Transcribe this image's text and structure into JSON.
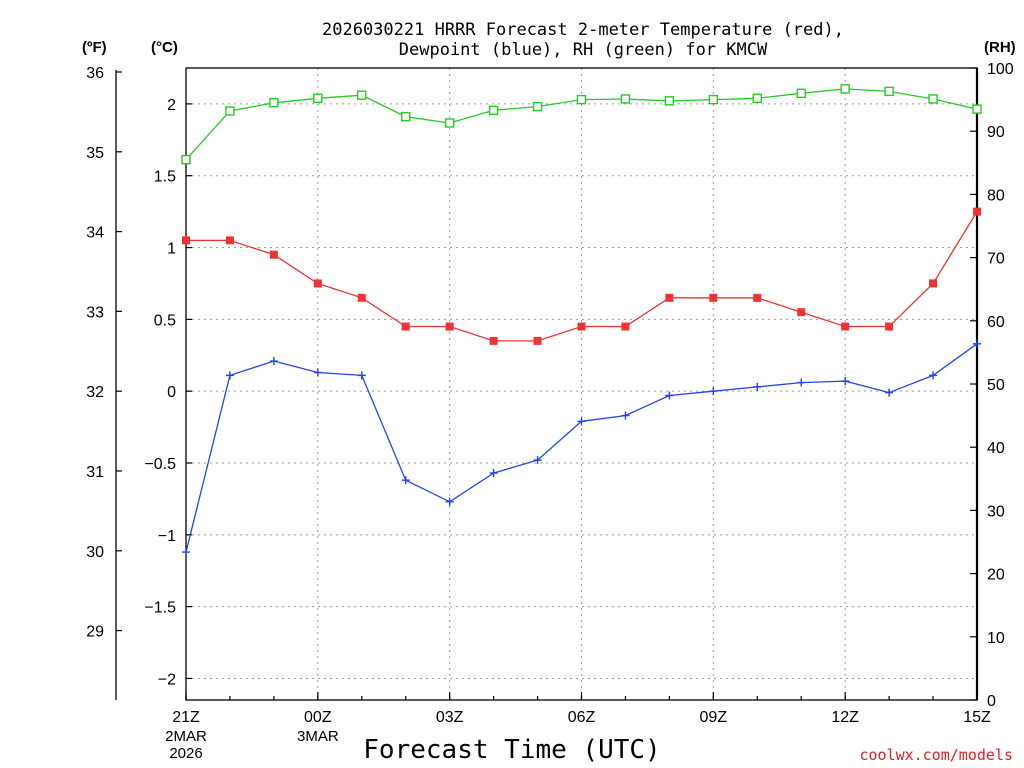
{
  "chart_data": {
    "type": "line",
    "title_lines": [
      "2026030221 HRRR Forecast 2-meter Temperature (red),",
      "Dewpoint (blue), RH (green) for KMCW"
    ],
    "xlabel": "Forecast Time (UTC)",
    "credit": "coolwx.com/models",
    "x": [
      0,
      1,
      2,
      3,
      4,
      5,
      6,
      7,
      8,
      9,
      10,
      11,
      12,
      13,
      14,
      15,
      16,
      17,
      18
    ],
    "xlim": [
      0,
      18
    ],
    "x_ticks": [
      {
        "x": 0,
        "label": "21Z",
        "sub1": "2MAR",
        "sub2": "2026"
      },
      {
        "x": 3,
        "label": "00Z",
        "sub1": "3MAR",
        "sub2": ""
      },
      {
        "x": 6,
        "label": "03Z",
        "sub1": "",
        "sub2": ""
      },
      {
        "x": 9,
        "label": "06Z",
        "sub1": "",
        "sub2": ""
      },
      {
        "x": 12,
        "label": "09Z",
        "sub1": "",
        "sub2": ""
      },
      {
        "x": 15,
        "label": "12Z",
        "sub1": "",
        "sub2": ""
      },
      {
        "x": 18,
        "label": "15Z",
        "sub1": "",
        "sub2": ""
      }
    ],
    "celsius_axis": {
      "unit_label": "(°C)",
      "lim": [
        -2.15,
        2.25
      ],
      "ticks": [
        -2,
        -1.5,
        -1,
        -0.5,
        0,
        0.5,
        1,
        1.5,
        2
      ],
      "tick_labels": [
        "−2",
        "−1.5",
        "−1",
        "−0.5",
        "0",
        "0.5",
        "1",
        "1.5",
        "2"
      ]
    },
    "fahrenheit_axis": {
      "unit_label": "(ºF)",
      "ticks": [
        29,
        30,
        31,
        32,
        33,
        34,
        35,
        36
      ],
      "tick_labels": [
        "29",
        "30",
        "31",
        "32",
        "33",
        "34",
        "35",
        "36"
      ]
    },
    "rh_axis": {
      "unit_label": "(RH)",
      "lim": [
        0,
        100
      ],
      "ticks": [
        0,
        10,
        20,
        30,
        40,
        50,
        60,
        70,
        80,
        90,
        100
      ],
      "tick_labels": [
        "0",
        "10",
        "20",
        "30",
        "40",
        "50",
        "60",
        "70",
        "80",
        "90",
        "100"
      ]
    },
    "series": [
      {
        "name": "2-meter Temperature",
        "axis": "celsius",
        "color": "#ee3333",
        "marker": "filled-square",
        "values": [
          1.05,
          1.05,
          0.95,
          0.75,
          0.65,
          0.45,
          0.45,
          0.35,
          0.35,
          0.45,
          0.45,
          0.65,
          0.65,
          0.65,
          0.55,
          0.45,
          0.45,
          0.75,
          1.25
        ]
      },
      {
        "name": "Dewpoint",
        "axis": "celsius",
        "color": "#2244ee",
        "marker": "plus",
        "values": [
          -1.12,
          0.11,
          0.21,
          0.13,
          0.11,
          -0.62,
          -0.77,
          -0.57,
          -0.48,
          -0.21,
          -0.17,
          -0.03,
          0.0,
          0.03,
          0.06,
          0.07,
          -0.01,
          0.11,
          0.33
        ]
      },
      {
        "name": "RH",
        "axis": "rh",
        "color": "#22cc22",
        "marker": "open-square",
        "values": [
          85.5,
          93.2,
          94.5,
          95.2,
          95.7,
          92.3,
          91.3,
          93.3,
          93.9,
          95.0,
          95.1,
          94.8,
          95.0,
          95.2,
          96.0,
          96.7,
          96.3,
          95.1,
          93.5
        ]
      }
    ]
  }
}
